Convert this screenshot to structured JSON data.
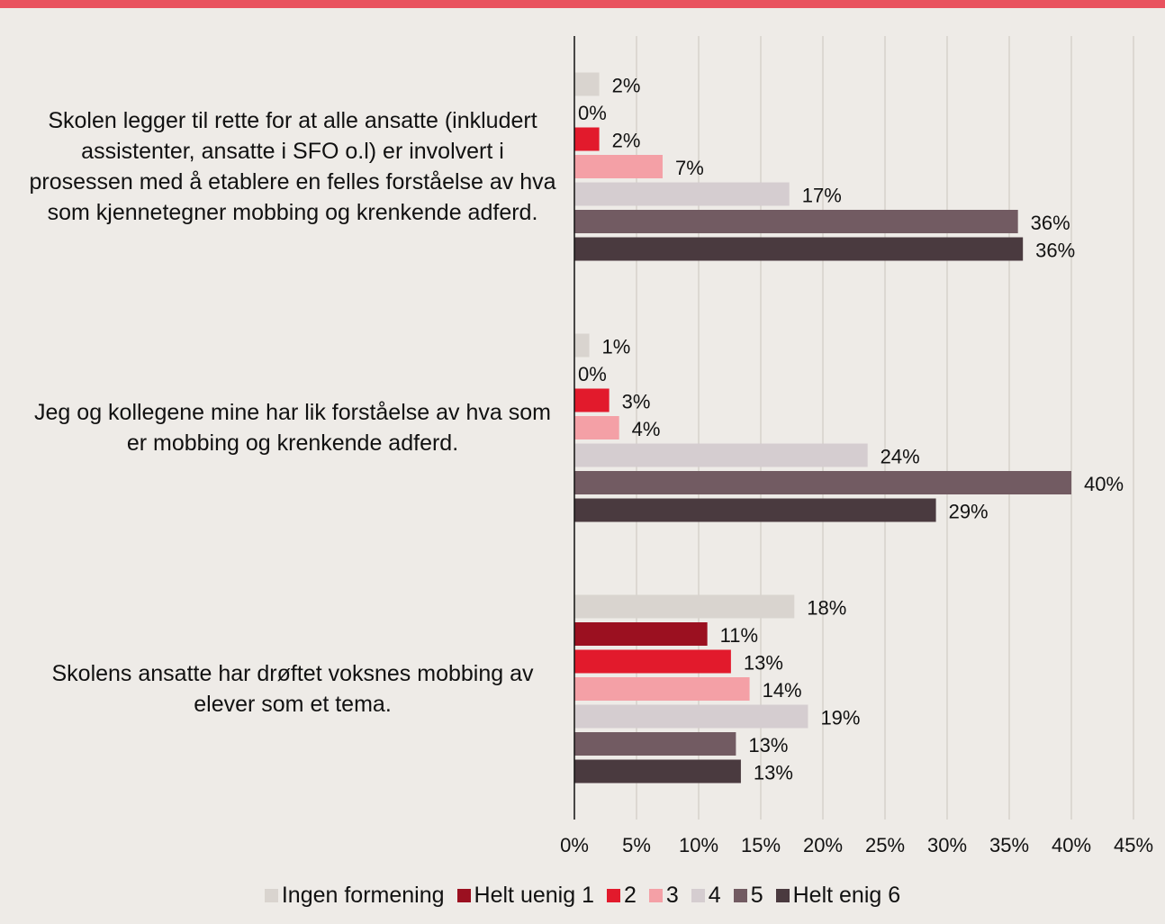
{
  "chart_data": {
    "type": "bar",
    "orientation": "horizontal",
    "categories": [
      "Skolen legger til rette for at alle ansatte (inkludert assistenter, ansatte i SFO o.l) er involvert i prosessen med å etablere en felles forståelse av hva som kjennetegner mobbing og krenkende adferd.",
      "Jeg og kollegene mine har lik forståelse av hva som er mobbing og krenkende adferd.",
      "Skolens ansatte har drøftet voksnes mobbing av elever som et tema."
    ],
    "series": [
      {
        "name": "Ingen formening",
        "color": "#d9d4cf",
        "values": [
          2.0,
          1.2,
          17.7
        ],
        "value_labels": [
          "2%",
          "1%",
          "18%"
        ]
      },
      {
        "name": "Helt uenig 1",
        "color": "#9b1020",
        "values": [
          0,
          0,
          10.7
        ],
        "value_labels": [
          "0%",
          "0%",
          "11%"
        ]
      },
      {
        "name": "2",
        "color": "#e21a2c",
        "values": [
          2.0,
          2.8,
          12.6
        ],
        "value_labels": [
          "2%",
          "3%",
          "13%"
        ]
      },
      {
        "name": "3",
        "color": "#f4a0a6",
        "values": [
          7.1,
          3.6,
          14.1
        ],
        "value_labels": [
          "7%",
          "4%",
          "14%"
        ]
      },
      {
        "name": "4",
        "color": "#d5cdd0",
        "values": [
          17.3,
          23.6,
          18.8
        ],
        "value_labels": [
          "17%",
          "24%",
          "19%"
        ]
      },
      {
        "name": "5",
        "color": "#725b62",
        "values": [
          35.7,
          40.0,
          13.0
        ],
        "value_labels": [
          "36%",
          "40%",
          "13%"
        ]
      },
      {
        "name": "Helt enig 6",
        "color": "#4a3a3f",
        "values": [
          36.1,
          29.1,
          13.4
        ],
        "value_labels": [
          "36%",
          "29%",
          "13%"
        ]
      }
    ],
    "xlim": [
      0,
      45
    ],
    "xticks": [
      {
        "value": 0,
        "label": "0%"
      },
      {
        "value": 5,
        "label": "5%"
      },
      {
        "value": 10,
        "label": "10%"
      },
      {
        "value": 15,
        "label": "15%"
      },
      {
        "value": 20,
        "label": "20%"
      },
      {
        "value": 25,
        "label": "25%"
      },
      {
        "value": 30,
        "label": "30%"
      },
      {
        "value": 35,
        "label": "35%"
      },
      {
        "value": 40,
        "label": "40%"
      },
      {
        "value": 45,
        "label": "45%"
      }
    ],
    "grid": true,
    "legend": "bottom"
  }
}
